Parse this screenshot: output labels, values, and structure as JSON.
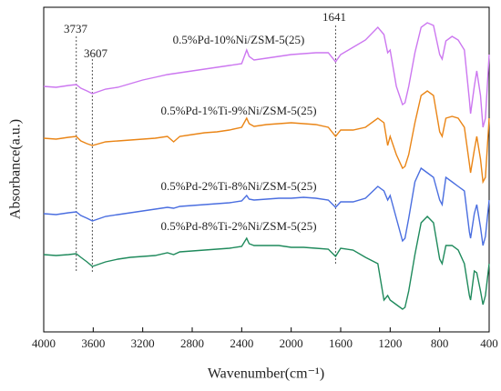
{
  "chart_data": {
    "type": "line",
    "xlabel": "Wavenumber(cm⁻¹)",
    "ylabel": "Absorbance(a.u.)",
    "xlim": [
      4000,
      400
    ],
    "xticks": [
      4000,
      3600,
      3200,
      2800,
      2400,
      2000,
      1600,
      1200,
      800,
      400
    ],
    "ylim": [
      0,
      357
    ],
    "vlines": [
      3737,
      3607,
      1641
    ],
    "x": [
      4000,
      3900,
      3800,
      3737,
      3700,
      3650,
      3607,
      3500,
      3400,
      3300,
      3200,
      3100,
      3000,
      2950,
      2900,
      2800,
      2700,
      2600,
      2500,
      2400,
      2360,
      2340,
      2300,
      2200,
      2100,
      2000,
      1900,
      1800,
      1700,
      1641,
      1600,
      1500,
      1400,
      1300,
      1250,
      1220,
      1200,
      1150,
      1100,
      1080,
      1050,
      1000,
      950,
      900,
      850,
      800,
      780,
      750,
      700,
      650,
      600,
      560,
      550,
      520,
      500,
      470,
      450,
      430,
      400
    ],
    "series": [
      {
        "name": "0.5%Pd-10%Ni/ZSM-5(25)",
        "color": "#cc77f0",
        "values": [
          270,
          269,
          271,
          272,
          268,
          265,
          262,
          267,
          269,
          273,
          277,
          280,
          283,
          284,
          285,
          287,
          289,
          291,
          293,
          295,
          310,
          303,
          299,
          301,
          303,
          305,
          306,
          307,
          307,
          297,
          305,
          313,
          321,
          335,
          327,
          307,
          310,
          270,
          250,
          252,
          270,
          307,
          335,
          340,
          337,
          305,
          300,
          320,
          325,
          321,
          310,
          255,
          240,
          270,
          287,
          260,
          225,
          235,
          305
        ]
      },
      {
        "name": "0.5%Pd-1%Ti-9%Ni/ZSM-5(25)",
        "color": "#ea8516",
        "values": [
          213,
          212,
          214,
          215,
          210,
          207,
          205,
          209,
          210,
          211,
          212,
          213,
          215,
          209,
          215,
          217,
          219,
          220,
          222,
          225,
          235,
          229,
          226,
          228,
          229,
          230,
          229,
          228,
          225,
          215,
          222,
          222,
          225,
          235,
          230,
          205,
          215,
          195,
          180,
          182,
          195,
          230,
          260,
          265,
          260,
          220,
          215,
          235,
          237,
          235,
          225,
          185,
          175,
          200,
          215,
          190,
          165,
          170,
          235
        ]
      },
      {
        "name": "0.5%Pd-2%Ti-8%Ni/ZSM-5(25)",
        "color": "#4a6ee0",
        "values": [
          130,
          129,
          131,
          132,
          128,
          125,
          122,
          127,
          129,
          131,
          133,
          135,
          137,
          136,
          138,
          139,
          140,
          141,
          142,
          144,
          150,
          146,
          145,
          146,
          147,
          147,
          148,
          147,
          145,
          137,
          143,
          143,
          147,
          160,
          155,
          145,
          150,
          125,
          100,
          103,
          125,
          165,
          180,
          175,
          170,
          145,
          140,
          170,
          165,
          160,
          155,
          110,
          103,
          130,
          140,
          115,
          95,
          105,
          145
        ]
      },
      {
        "name": "0.5%Pd-8%Ti-2%Ni/ZSM-5(25)",
        "color": "#1f8a5c",
        "values": [
          85,
          84,
          85,
          86,
          82,
          77,
          72,
          77,
          80,
          82,
          83,
          84,
          87,
          85,
          88,
          89,
          90,
          91,
          92,
          94,
          103,
          97,
          95,
          95,
          95,
          93,
          93,
          92,
          91,
          83,
          92,
          90,
          82,
          75,
          35,
          40,
          35,
          30,
          25,
          27,
          45,
          85,
          120,
          127,
          120,
          80,
          75,
          95,
          95,
          90,
          75,
          40,
          35,
          67,
          65,
          45,
          30,
          40,
          75
        ]
      }
    ]
  }
}
